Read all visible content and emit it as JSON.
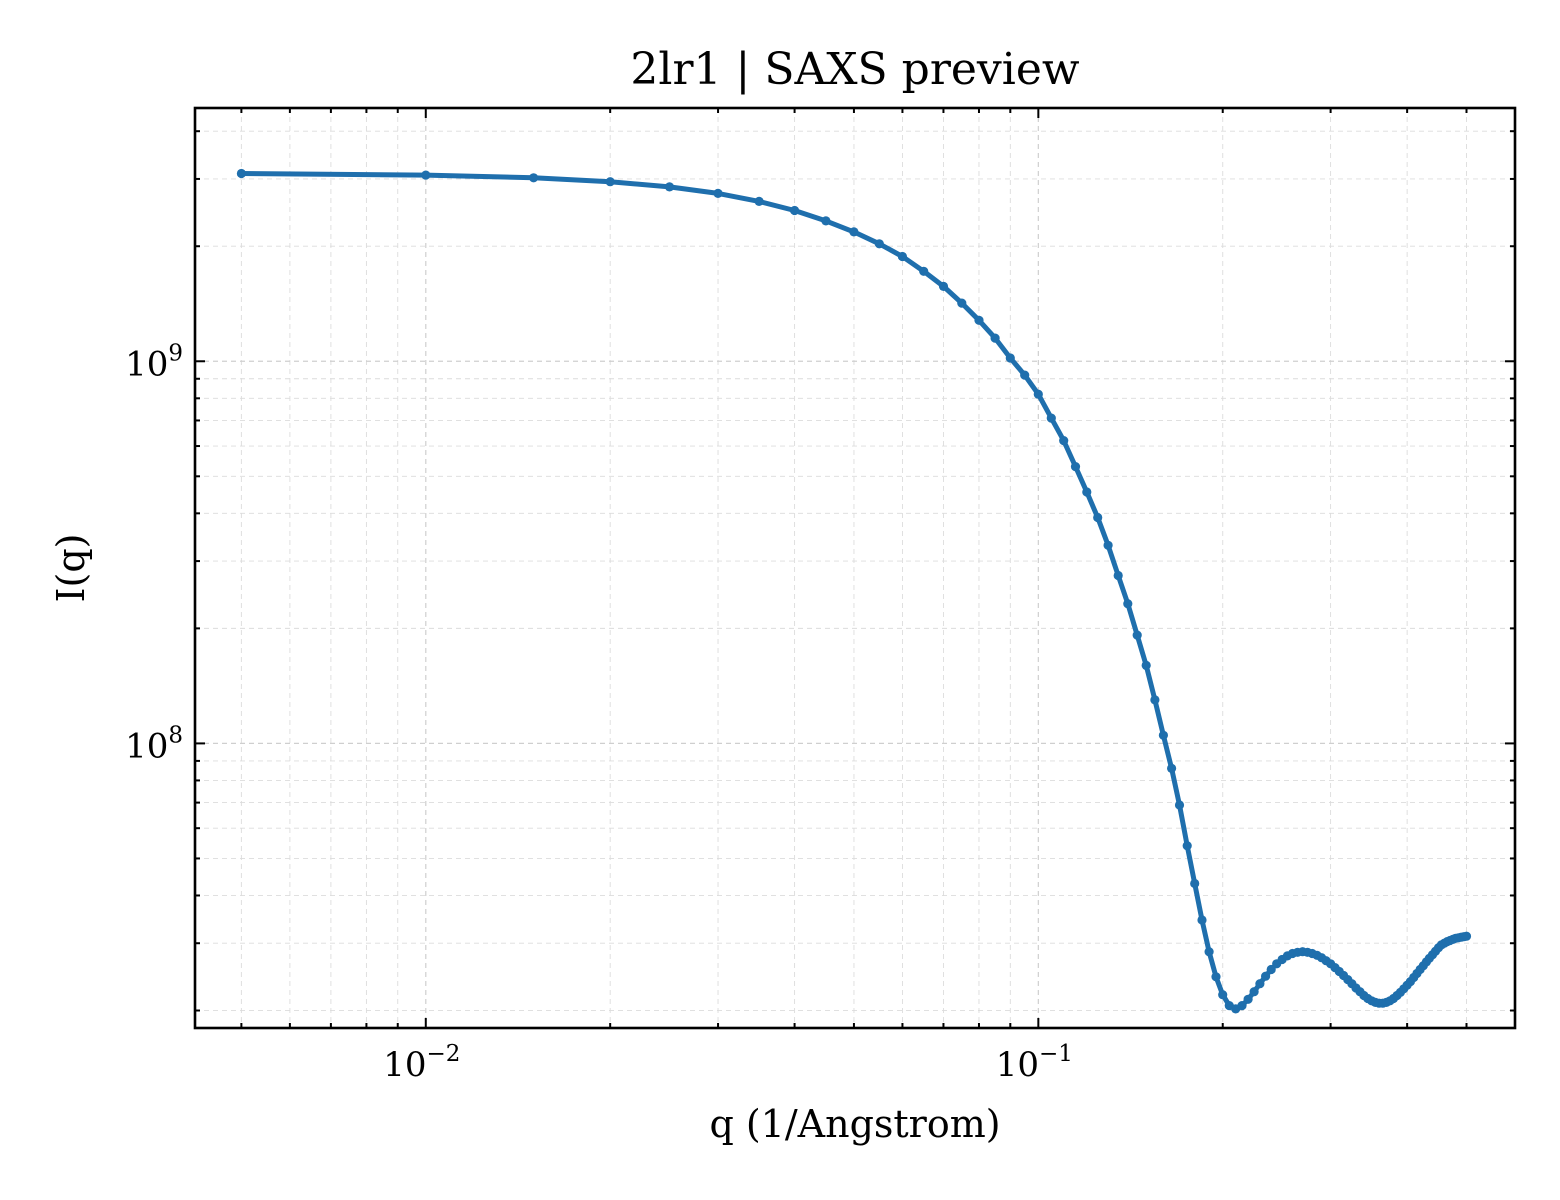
{
  "title": "2lr1 | SAXS preview",
  "xlabel": "q (1/Angstrom)",
  "ylabel": "I(q)",
  "colors": {
    "series": "#1f6fad",
    "axes": "#000000",
    "grid": "#cfcfcf"
  },
  "chart_data": {
    "type": "line",
    "title": "2lr1 | SAXS preview",
    "xlabel": "q (1/Angstrom)",
    "ylabel": "I(q)",
    "xscale": "log",
    "yscale": "log",
    "xlim": [
      0.0042,
      0.6
    ],
    "ylim": [
      18000000.0,
      4600000000.0
    ],
    "grid": "major and minor, dashed",
    "legend": "none",
    "x_ticks": [
      {
        "value": 0.01,
        "base": "10",
        "exp": "−2"
      },
      {
        "value": 0.1,
        "base": "10",
        "exp": "−1"
      }
    ],
    "y_ticks": [
      {
        "value": 100000000,
        "base": "10",
        "exp": "8"
      },
      {
        "value": 1000000000,
        "base": "10",
        "exp": "9"
      }
    ],
    "series": [
      {
        "marker": "circle",
        "x": [
          0.005,
          0.01,
          0.015,
          0.02,
          0.025,
          0.03,
          0.035,
          0.04,
          0.045,
          0.05,
          0.055,
          0.06,
          0.065,
          0.07,
          0.075,
          0.08,
          0.085,
          0.09,
          0.095,
          0.1,
          0.105,
          0.11,
          0.115,
          0.12,
          0.125,
          0.13,
          0.135,
          0.14,
          0.145,
          0.15,
          0.155,
          0.16,
          0.165,
          0.17,
          0.175,
          0.18,
          0.185,
          0.19,
          0.195,
          0.2,
          0.205,
          0.21,
          0.215,
          0.22,
          0.225,
          0.23,
          0.235,
          0.24,
          0.245,
          0.25,
          0.255,
          0.26,
          0.265,
          0.27,
          0.275,
          0.28,
          0.285,
          0.29,
          0.295,
          0.3,
          0.305,
          0.31,
          0.315,
          0.32,
          0.325,
          0.33,
          0.335,
          0.34,
          0.345,
          0.35,
          0.355,
          0.36,
          0.365,
          0.37,
          0.375,
          0.38,
          0.385,
          0.39,
          0.395,
          0.4,
          0.405,
          0.41,
          0.415,
          0.42,
          0.425,
          0.43,
          0.435,
          0.44,
          0.445,
          0.45,
          0.455,
          0.46,
          0.465,
          0.47,
          0.475,
          0.48,
          0.485,
          0.49,
          0.495,
          0.5
        ],
        "y": [
          3100000000.0,
          3070000000.0,
          3020000000.0,
          2950000000.0,
          2860000000.0,
          2750000000.0,
          2620000000.0,
          2480000000.0,
          2330000000.0,
          2180000000.0,
          2030000000.0,
          1880000000.0,
          1720000000.0,
          1570000000.0,
          1420000000.0,
          1280000000.0,
          1150000000.0,
          1020000000.0,
          920000000.0,
          820000000.0,
          710000000.0,
          620000000.0,
          530000000.0,
          455000000.0,
          390000000.0,
          330000000.0,
          275000000.0,
          232000000.0,
          192000000.0,
          160000000.0,
          130000000.0,
          105000000.0,
          86000000.0,
          69000000.0,
          54000000.0,
          43000000.0,
          34500000.0,
          28500000.0,
          24500000.0,
          22000000.0,
          20600000.0,
          20200000.0,
          20600000.0,
          21400000.0,
          22400000.0,
          23500000.0,
          24600000.0,
          25600000.0,
          26500000.0,
          27200000.0,
          27800000.0,
          28200000.0,
          28400000.0,
          28500000.0,
          28400000.0,
          28200000.0,
          27900000.0,
          27500000.0,
          27000000.0,
          26500000.0,
          25900000.0,
          25300000.0,
          24700000.0,
          24100000.0,
          23500000.0,
          22900000.0,
          22400000.0,
          21900000.0,
          21500000.0,
          21200000.0,
          21000000.0,
          20900000.0,
          20900000.0,
          21000000.0,
          21200000.0,
          21500000.0,
          21900000.0,
          22300000.0,
          22800000.0,
          23300000.0,
          23800000.0,
          24400000.0,
          25000000.0,
          25600000.0,
          26200000.0,
          26800000.0,
          27400000.0,
          28000000.0,
          28600000.0,
          29200000.0,
          29700000.0,
          30000000.0,
          30300000.0,
          30500000.0,
          30700000.0,
          30900000.0,
          31000000.0,
          31100000.0,
          31200000.0,
          31300000.0
        ]
      }
    ]
  }
}
